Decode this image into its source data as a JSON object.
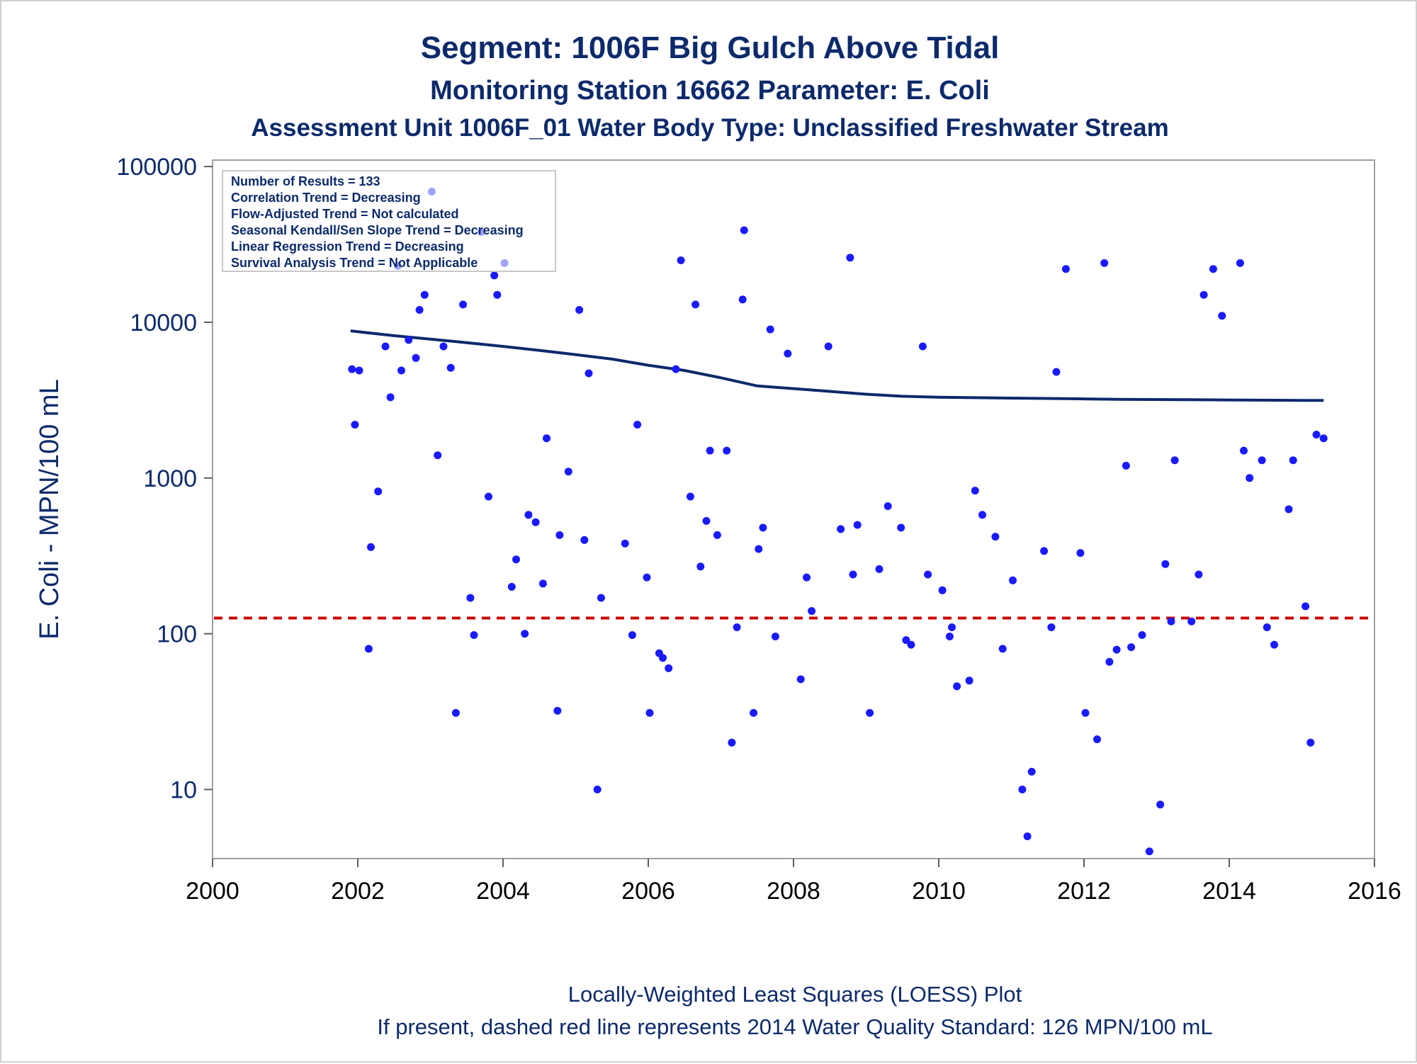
{
  "titles": {
    "line1": "Segment: 1006F  Big Gulch Above Tidal",
    "line2": "Monitoring Station 16662 Parameter: E. Coli",
    "line3": "Assessment Unit 1006F_01   Water Body Type: Unclassified Freshwater Stream"
  },
  "stats_box": [
    "Number of Results = 133",
    "Correlation Trend = Decreasing",
    "Flow-Adjusted Trend = Not calculated",
    "Seasonal Kendall/Sen Slope Trend = Decreasing",
    "Linear Regression Trend = Decreasing",
    "Survival Analysis Trend = Not Applicable"
  ],
  "footnotes": {
    "line1": "Locally-Weighted Least Squares (LOESS) Plot",
    "line2": "If present, dashed red line represents 2014 Water Quality Standard: 126 MPN/100 mL"
  },
  "colors": {
    "points": "#1a1aff",
    "loess": "#0c2a6b",
    "standard": "#cc0000",
    "text": "#0c2a6b",
    "axis": "#a0a0a0"
  },
  "chart_data": {
    "type": "scatter",
    "ylabel": "E. Coli - MPN/100 mL",
    "yscale": "log",
    "xlim": [
      2000,
      2016
    ],
    "ylim": [
      3.6,
      110000
    ],
    "xticks": [
      "2000",
      "2002",
      "2004",
      "2006",
      "2008",
      "2010",
      "2012",
      "2014",
      "2016"
    ],
    "yticks": [
      "10",
      "100",
      "1000",
      "10000",
      "100000"
    ],
    "standard_line": 126,
    "loess": {
      "x": [
        2001.9,
        2002.5,
        2003.0,
        2003.5,
        2004.0,
        2004.5,
        2005.0,
        2005.5,
        2006.0,
        2006.5,
        2007.0,
        2007.5,
        2008.0,
        2008.5,
        2009.0,
        2009.5,
        2010.0,
        2010.5,
        2011.0,
        2011.5,
        2012.0,
        2012.5,
        2013.0,
        2013.5,
        2014.0,
        2014.5,
        2015.0,
        2015.3
      ],
      "y": [
        8800,
        8200,
        7800,
        7400,
        7000,
        6600,
        6200,
        5800,
        5300,
        4900,
        4400,
        3900,
        3750,
        3600,
        3450,
        3350,
        3300,
        3280,
        3260,
        3240,
        3220,
        3200,
        3190,
        3180,
        3170,
        3160,
        3150,
        3150
      ]
    },
    "points": [
      [
        2001.92,
        5000
      ],
      [
        2001.96,
        2200
      ],
      [
        2002.02,
        4900
      ],
      [
        2002.15,
        80
      ],
      [
        2002.18,
        360
      ],
      [
        2002.28,
        820
      ],
      [
        2002.38,
        7000
      ],
      [
        2002.45,
        3300
      ],
      [
        2002.55,
        23000
      ],
      [
        2002.6,
        4900
      ],
      [
        2002.7,
        7700
      ],
      [
        2002.8,
        5900
      ],
      [
        2002.85,
        12000
      ],
      [
        2002.92,
        15000
      ],
      [
        2003.02,
        69000
      ],
      [
        2003.1,
        1400
      ],
      [
        2003.18,
        7000
      ],
      [
        2003.28,
        5100
      ],
      [
        2003.35,
        31
      ],
      [
        2003.45,
        13000
      ],
      [
        2003.55,
        170
      ],
      [
        2003.6,
        98
      ],
      [
        2003.7,
        38000
      ],
      [
        2003.8,
        760
      ],
      [
        2003.88,
        20000
      ],
      [
        2003.92,
        15000
      ],
      [
        2004.02,
        24000
      ],
      [
        2004.12,
        200
      ],
      [
        2004.18,
        300
      ],
      [
        2004.3,
        100
      ],
      [
        2004.35,
        580
      ],
      [
        2004.45,
        520
      ],
      [
        2004.55,
        210
      ],
      [
        2004.6,
        1800
      ],
      [
        2004.75,
        32
      ],
      [
        2004.78,
        430
      ],
      [
        2004.9,
        1100
      ],
      [
        2005.05,
        12000
      ],
      [
        2005.12,
        400
      ],
      [
        2005.18,
        4700
      ],
      [
        2005.3,
        10
      ],
      [
        2005.35,
        170
      ],
      [
        2005.68,
        380
      ],
      [
        2005.78,
        98
      ],
      [
        2005.85,
        2200
      ],
      [
        2005.98,
        230
      ],
      [
        2006.02,
        31
      ],
      [
        2006.15,
        75
      ],
      [
        2006.2,
        70
      ],
      [
        2006.28,
        60
      ],
      [
        2006.38,
        5000
      ],
      [
        2006.45,
        25000
      ],
      [
        2006.58,
        760
      ],
      [
        2006.65,
        13000
      ],
      [
        2006.72,
        270
      ],
      [
        2006.8,
        530
      ],
      [
        2006.85,
        1500
      ],
      [
        2006.95,
        430
      ],
      [
        2007.08,
        1500
      ],
      [
        2007.15,
        20
      ],
      [
        2007.22,
        110
      ],
      [
        2007.3,
        14000
      ],
      [
        2007.32,
        39000
      ],
      [
        2007.45,
        31
      ],
      [
        2007.52,
        350
      ],
      [
        2007.58,
        480
      ],
      [
        2007.68,
        9000
      ],
      [
        2007.75,
        96
      ],
      [
        2007.92,
        6300
      ],
      [
        2008.1,
        51
      ],
      [
        2008.18,
        230
      ],
      [
        2008.25,
        140
      ],
      [
        2008.48,
        7000
      ],
      [
        2008.65,
        470
      ],
      [
        2008.78,
        26000
      ],
      [
        2008.82,
        240
      ],
      [
        2008.88,
        500
      ],
      [
        2009.05,
        31
      ],
      [
        2009.18,
        260
      ],
      [
        2009.3,
        660
      ],
      [
        2009.48,
        480
      ],
      [
        2009.55,
        91
      ],
      [
        2009.62,
        85
      ],
      [
        2009.78,
        7000
      ],
      [
        2009.85,
        240
      ],
      [
        2010.05,
        190
      ],
      [
        2010.15,
        96
      ],
      [
        2010.18,
        110
      ],
      [
        2010.25,
        46
      ],
      [
        2010.42,
        50
      ],
      [
        2010.5,
        830
      ],
      [
        2010.6,
        580
      ],
      [
        2010.78,
        420
      ],
      [
        2010.88,
        80
      ],
      [
        2011.02,
        220
      ],
      [
        2011.15,
        10
      ],
      [
        2011.22,
        5
      ],
      [
        2011.28,
        13
      ],
      [
        2011.45,
        340
      ],
      [
        2011.55,
        110
      ],
      [
        2011.62,
        4800
      ],
      [
        2011.75,
        22000
      ],
      [
        2011.95,
        330
      ],
      [
        2012.02,
        31
      ],
      [
        2012.18,
        21
      ],
      [
        2012.28,
        24000
      ],
      [
        2012.35,
        66
      ],
      [
        2012.45,
        79
      ],
      [
        2012.58,
        1200
      ],
      [
        2012.65,
        82
      ],
      [
        2012.8,
        98
      ],
      [
        2012.9,
        4
      ],
      [
        2013.05,
        8
      ],
      [
        2013.12,
        280
      ],
      [
        2013.2,
        120
      ],
      [
        2013.25,
        1300
      ],
      [
        2013.48,
        120
      ],
      [
        2013.58,
        240
      ],
      [
        2013.65,
        15000
      ],
      [
        2013.78,
        22000
      ],
      [
        2013.9,
        11000
      ],
      [
        2014.15,
        24000
      ],
      [
        2014.2,
        1500
      ],
      [
        2014.28,
        1000
      ],
      [
        2014.45,
        1300
      ],
      [
        2014.52,
        110
      ],
      [
        2014.62,
        85
      ],
      [
        2014.82,
        630
      ],
      [
        2014.88,
        1300
      ],
      [
        2015.05,
        150
      ],
      [
        2015.12,
        20
      ],
      [
        2015.2,
        1900
      ],
      [
        2015.3,
        1800
      ]
    ]
  }
}
